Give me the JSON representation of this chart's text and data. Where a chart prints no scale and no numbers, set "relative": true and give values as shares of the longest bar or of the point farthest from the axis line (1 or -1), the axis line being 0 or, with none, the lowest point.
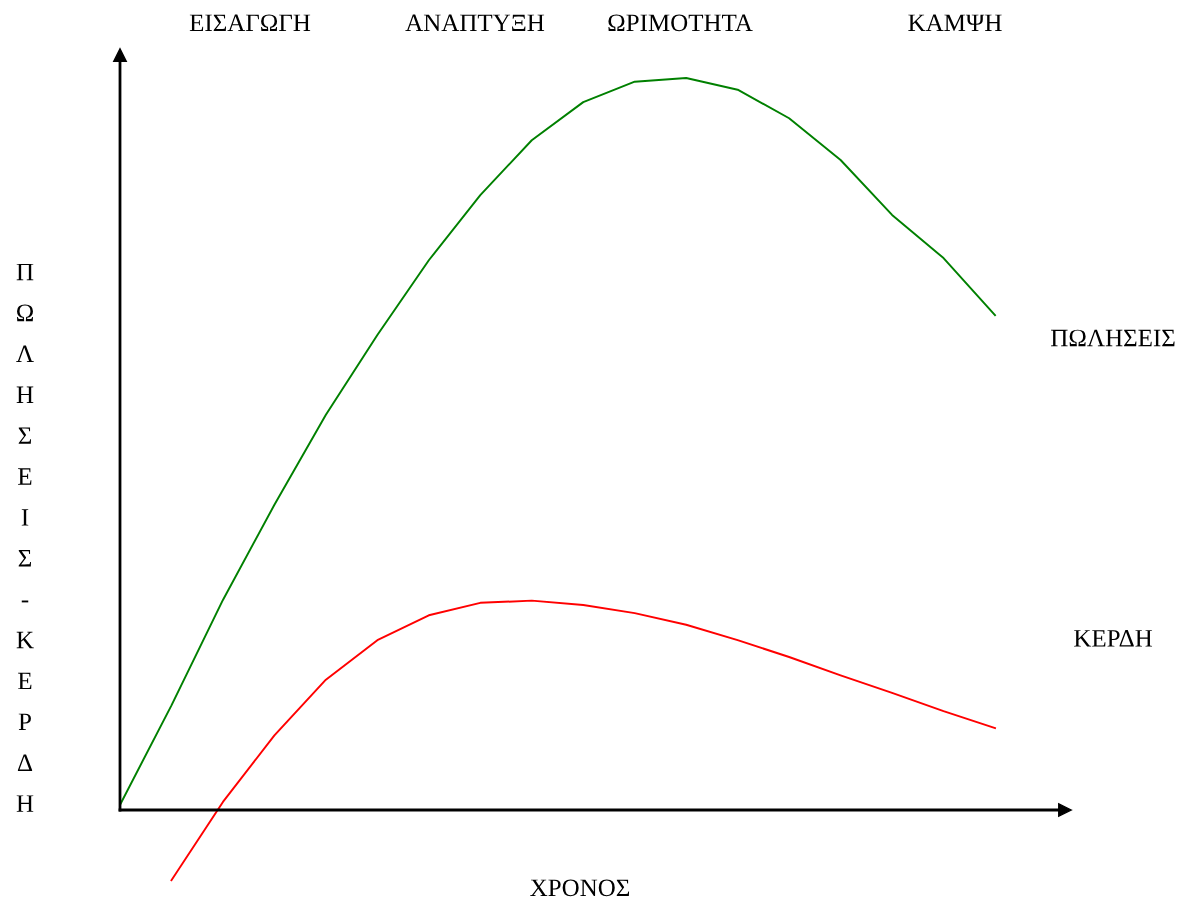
{
  "chart_data": {
    "type": "line",
    "relative": true,
    "xlabel": "ΧΡΟΝΟΣ",
    "ylabel": "ΠΩΛΗΣΕΙΣ-ΚΕΡΔΗ",
    "annotations": [
      "ΕΙΣΑΓΩΓΗ",
      "ΑΝΑΠΤΥΞΗ",
      "ΩΡΙΜΟΤΗΤΑ",
      "ΚΑΜΨΗ"
    ],
    "categories": [
      null,
      null,
      null,
      null,
      null,
      null,
      null,
      null,
      null,
      null,
      null,
      null,
      null,
      null,
      null,
      null,
      null,
      null
    ],
    "series": [
      {
        "name": "ΠΩΛΗΣΕΙΣ",
        "color": "#008000",
        "values": [
          0.007,
          0.143,
          0.287,
          0.417,
          0.54,
          0.649,
          0.751,
          0.84,
          0.915,
          0.967,
          0.995,
          1.0,
          0.984,
          0.945,
          0.888,
          0.813,
          0.754,
          0.676
        ]
      },
      {
        "name": "ΚΕΡΔΗ",
        "color": "#ff0000",
        "values": [
          null,
          -0.096,
          0.011,
          0.102,
          0.178,
          0.232,
          0.266,
          0.283,
          0.286,
          0.28,
          0.269,
          0.253,
          0.232,
          0.209,
          0.184,
          0.16,
          0.135,
          0.112
        ]
      }
    ],
    "grid": false,
    "legend": false,
    "marker": "none",
    "line_style": "solid"
  }
}
